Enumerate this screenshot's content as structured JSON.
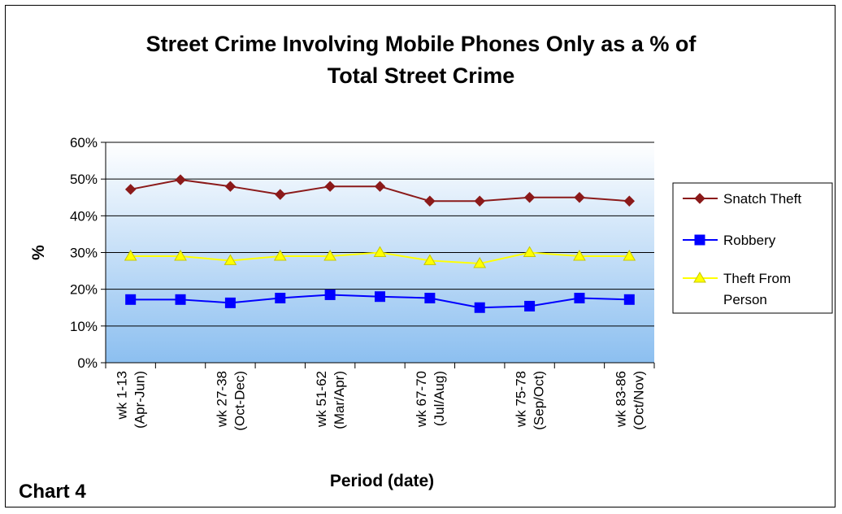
{
  "chart_data": {
    "type": "line",
    "title_lines": [
      "Street Crime Involving Mobile Phones Only as a % of",
      "Total Street Crime"
    ],
    "xlabel": "Period (date)",
    "ylabel": "%",
    "chart_label": "Chart 4",
    "ylim": [
      0,
      60
    ],
    "y_ticks": [
      "0%",
      "10%",
      "20%",
      "30%",
      "40%",
      "50%",
      "60%"
    ],
    "y_tick_values": [
      0,
      10,
      20,
      30,
      40,
      50,
      60
    ],
    "categories": [
      "wk 1-13 (Apr-Jun)",
      "",
      "wk 27-38 (Oct-Dec)",
      "",
      "wk 51-62 (Mar/Apr)",
      "",
      "wk 67-70 (Jul/Aug)",
      "",
      "wk 75-78 (Sep/Oct)",
      "",
      "wk 83-86 (Oct/Nov)"
    ],
    "category_label_lines": [
      [
        "wk 1-13",
        "(Apr-Jun)"
      ],
      [],
      [
        "wk 27-38",
        "(Oct-Dec)"
      ],
      [],
      [
        "wk 51-62",
        "(Mar/Apr)"
      ],
      [],
      [
        "wk 67-70",
        "(Jul/Aug)"
      ],
      [],
      [
        "wk 75-78",
        "(Sep/Oct)"
      ],
      [],
      [
        "wk 83-86",
        "(Oct/Nov)"
      ]
    ],
    "grid": true,
    "legend_position": "right",
    "series": [
      {
        "name": "Snatch Theft",
        "legend_lines": [
          "Snatch Theft"
        ],
        "color": "#8B1A1A",
        "marker": "diamond",
        "values": [
          47.2,
          49.8,
          48.0,
          45.8,
          48.0,
          48.0,
          44.0,
          44.0,
          45.0,
          45.0,
          44.0
        ]
      },
      {
        "name": "Robbery",
        "legend_lines": [
          "Robbery"
        ],
        "color": "#0000FF",
        "marker": "square",
        "values": [
          17.2,
          17.2,
          16.3,
          17.6,
          18.5,
          18.0,
          17.6,
          15.0,
          15.4,
          17.6,
          17.2
        ]
      },
      {
        "name": "Theft From Person",
        "legend_lines": [
          "Theft From",
          "Person"
        ],
        "color": "#FFFF00",
        "marker": "triangle",
        "values": [
          29.0,
          29.0,
          27.8,
          29.0,
          29.0,
          30.0,
          27.8,
          27.0,
          30.0,
          29.0,
          29.0
        ]
      }
    ],
    "colors": {
      "plot_gradient_top": "#ffffff",
      "plot_gradient_bottom": "#8cbff0",
      "triangle_edge": "#C8C800"
    }
  }
}
